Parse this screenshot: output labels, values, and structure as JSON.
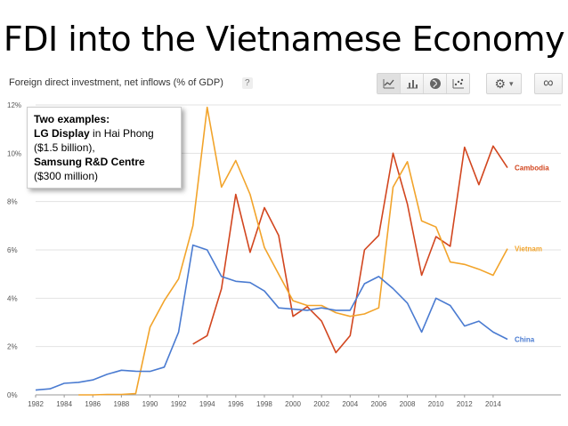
{
  "slide_title": "FDI into the Vietnamese Economy",
  "header": {
    "title": "Foreign direct investment, net inflows (% of GDP)",
    "help": "?"
  },
  "toolbar": {
    "icons": [
      "line-chart-icon",
      "bar-chart-icon",
      "globe-icon",
      "scatter-icon",
      "gear-icon",
      "chevron-down-icon",
      "link-icon"
    ],
    "gear_caret": "▾",
    "link_symbol": "∞"
  },
  "callout": {
    "title": "Two examples:",
    "lg_name": "LG Display",
    "lg_rest": " in Hai Phong ($1.5 billion),",
    "samsung_name": "Samsung R&D Centre",
    "samsung_rest": "($300 million)"
  },
  "chart_data": {
    "type": "line",
    "title": "Foreign direct investment, net inflows (% of GDP)",
    "xlabel": "",
    "ylabel": "",
    "xlim": [
      1982,
      2015.5
    ],
    "ylim": [
      0,
      12
    ],
    "y_ticks": [
      0,
      2,
      4,
      6,
      8,
      10,
      12
    ],
    "y_tick_labels": [
      "0%",
      "2%",
      "4%",
      "6%",
      "8%",
      "10%",
      "12%"
    ],
    "x_ticks": [
      1982,
      1984,
      1986,
      1988,
      1990,
      1992,
      1994,
      1996,
      1998,
      2000,
      2002,
      2004,
      2006,
      2008,
      2010,
      2012,
      2014
    ],
    "grid": true,
    "legend": "end-of-line labels",
    "series": [
      {
        "name": "Cambodia",
        "color": "#d2461f",
        "x": [
          1993,
          1994,
          1995,
          1996,
          1997,
          1998,
          1999,
          2000,
          2001,
          2002,
          2003,
          2004,
          2005,
          2006,
          2007,
          2008,
          2009,
          2010,
          2011,
          2012,
          2013,
          2014,
          2015
        ],
        "y": [
          2.1,
          2.45,
          4.4,
          8.3,
          5.9,
          7.75,
          6.6,
          3.25,
          3.65,
          3.05,
          1.75,
          2.45,
          6.0,
          6.6,
          10.0,
          7.9,
          4.95,
          6.55,
          6.15,
          10.25,
          8.7,
          10.3,
          9.4
        ]
      },
      {
        "name": "Vietnam",
        "color": "#f2a42b",
        "x": [
          1985,
          1986,
          1987,
          1988,
          1989,
          1990,
          1991,
          1992,
          1993,
          1994,
          1995,
          1996,
          1997,
          1998,
          1999,
          2000,
          2001,
          2002,
          2003,
          2004,
          2005,
          2006,
          2007,
          2008,
          2009,
          2010,
          2011,
          2012,
          2013,
          2014,
          2015
        ],
        "y": [
          0.0,
          0.0,
          0.02,
          0.02,
          0.05,
          2.8,
          3.9,
          4.8,
          7.0,
          11.9,
          8.6,
          9.7,
          8.3,
          6.1,
          5.0,
          3.9,
          3.7,
          3.7,
          3.4,
          3.25,
          3.35,
          3.6,
          8.6,
          9.65,
          7.2,
          6.95,
          5.5,
          5.4,
          5.2,
          4.95,
          6.05
        ]
      },
      {
        "name": "China",
        "color": "#4a7bd1",
        "x": [
          1982,
          1983,
          1984,
          1985,
          1986,
          1987,
          1988,
          1989,
          1990,
          1991,
          1992,
          1993,
          1994,
          1995,
          1996,
          1997,
          1998,
          1999,
          2000,
          2001,
          2002,
          2003,
          2004,
          2005,
          2006,
          2007,
          2008,
          2009,
          2010,
          2011,
          2012,
          2013,
          2014,
          2015
        ],
        "y": [
          0.2,
          0.25,
          0.48,
          0.52,
          0.62,
          0.85,
          1.02,
          0.98,
          0.97,
          1.15,
          2.6,
          6.2,
          6.0,
          4.9,
          4.7,
          4.65,
          4.3,
          3.6,
          3.55,
          3.5,
          3.6,
          3.5,
          3.5,
          4.6,
          4.9,
          4.4,
          3.8,
          2.6,
          4.0,
          3.7,
          2.85,
          3.05,
          2.6,
          2.3
        ]
      }
    ]
  }
}
